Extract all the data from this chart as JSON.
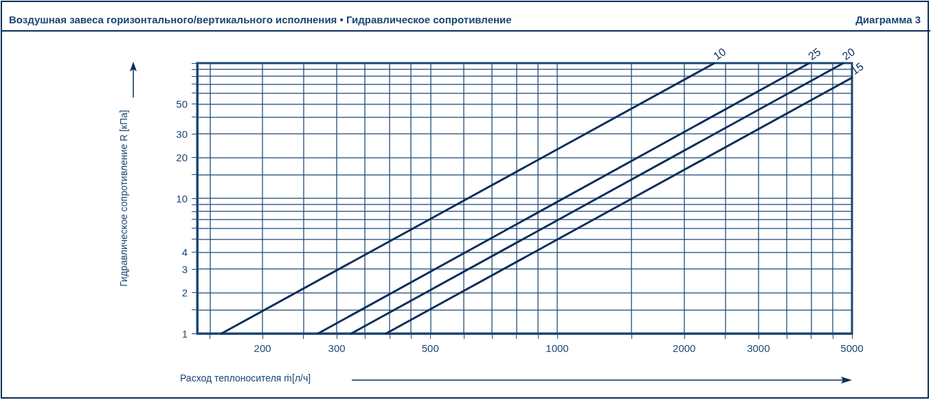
{
  "chart_data": {
    "type": "line",
    "title": "Воздушная завеса горизонтального/вертикального исполнения • Гидравлическое сопротивление",
    "subtitle": "Диаграмма 3",
    "xlabel": "Расход теплоносителя ṁ[л/ч]",
    "ylabel": "Гидравлическое сопротивление R [кПа]",
    "log": "xy",
    "grid": true,
    "marker": "none",
    "line_style": "solid",
    "xlim": [
      140,
      5000
    ],
    "xticks": [
      {
        "value": 150,
        "label": null
      },
      200,
      {
        "value": 250,
        "label": null
      },
      300,
      {
        "value": 350,
        "label": null
      },
      {
        "value": 400,
        "label": null
      },
      {
        "value": 450,
        "label": null
      },
      500,
      {
        "value": 600,
        "label": null
      },
      {
        "value": 700,
        "label": null
      },
      {
        "value": 800,
        "label": null
      },
      {
        "value": 900,
        "label": null
      },
      1000,
      {
        "value": 1500,
        "label": null
      },
      2000,
      {
        "value": 2500,
        "label": null
      },
      3000,
      {
        "value": 3500,
        "label": null
      },
      {
        "value": 4000,
        "label": null
      },
      {
        "value": 4500,
        "label": null
      },
      5000
    ],
    "ylim": [
      1,
      100
    ],
    "yticks": [
      1,
      {
        "value": 1.5,
        "label": null
      },
      2,
      3,
      4,
      {
        "value": 5,
        "label": null
      },
      {
        "value": 6,
        "label": null
      },
      {
        "value": 7,
        "label": null
      },
      {
        "value": 8,
        "label": null
      },
      {
        "value": 9,
        "label": null
      },
      10,
      {
        "value": 15,
        "label": null
      },
      20,
      30,
      {
        "value": 40,
        "label": null
      },
      50,
      {
        "value": 60,
        "label": null
      },
      {
        "value": 70,
        "label": null
      },
      {
        "value": 80,
        "label": null
      },
      {
        "value": 90,
        "label": null
      },
      {
        "value": 100,
        "label": null
      }
    ],
    "series": [
      {
        "name": "10",
        "color": "#0b2d5b",
        "x": [
          160,
          2360
        ],
        "values": [
          1,
          100
        ]
      },
      {
        "name": "25",
        "color": "#0b2d5b",
        "x": [
          271,
          3960
        ],
        "values": [
          1,
          100
        ]
      },
      {
        "name": "20",
        "color": "#0b2d5b",
        "x": [
          325,
          4770
        ],
        "values": [
          1,
          100
        ]
      },
      {
        "name": "15",
        "color": "#0b2d5b",
        "x": [
          393,
          5000
        ],
        "values": [
          1,
          78
        ]
      }
    ]
  }
}
